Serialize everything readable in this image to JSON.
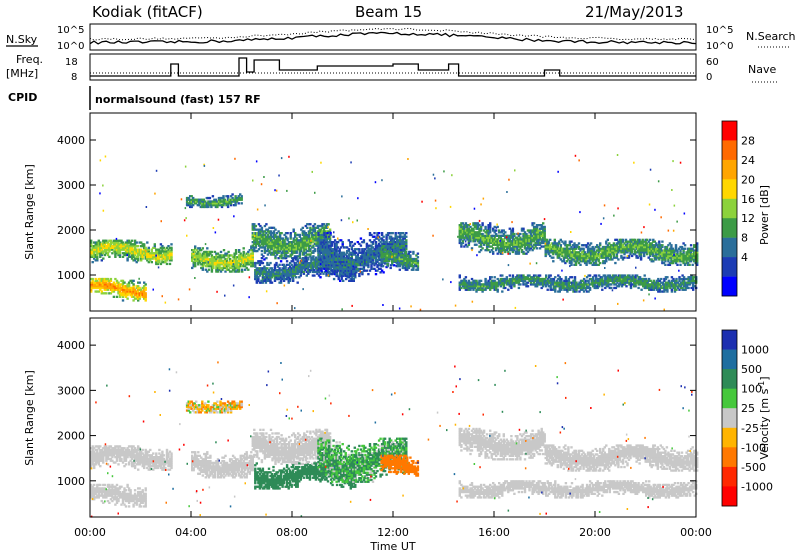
{
  "header": {
    "station": "Kodiak (fitACF)",
    "beam": "Beam 15",
    "date": "21/May/2013"
  },
  "noise_panel": {
    "left_label": "N.Sky",
    "right_label": "N.Search",
    "tick_top": "10^5",
    "tick_bottom": "10^0"
  },
  "freq_panel": {
    "left_label_line1": "Freq.",
    "left_label_line2": "[MHz]",
    "right_label": "Nave",
    "left_ticks": [
      "18",
      "8"
    ],
    "right_ticks": [
      "60",
      "0"
    ]
  },
  "cpid": {
    "label": "CPID",
    "text": "normalsound (fast) 157 RF"
  },
  "power_panel": {
    "ylabel": "Slant Range [km]",
    "yticks": [
      "4000",
      "3000",
      "2000",
      "1000"
    ],
    "colorbar_title": "Power [dB]",
    "colorbar_labels": [
      "28",
      "24",
      "20",
      "16",
      "12",
      "8",
      "4"
    ],
    "colors": [
      "#ff0000",
      "#ff6a00",
      "#ffa500",
      "#ffd700",
      "#8cd23c",
      "#3c9b46",
      "#2a6e9a",
      "#1c3cb4",
      "#0000ff"
    ]
  },
  "velocity_panel": {
    "ylabel": "Slant Range [km]",
    "yticks": [
      "4000",
      "3000",
      "2000",
      "1000"
    ],
    "colorbar_title": "Velocity [m s",
    "colorbar_exp": "-1",
    "colorbar_title_end": "]",
    "colorbar_labels": [
      "1000",
      "500",
      "100",
      "25",
      "-25",
      "-100",
      "-500",
      "-1000"
    ],
    "colors": [
      "#1c2fb0",
      "#1e6ea0",
      "#2e8b57",
      "#46c83c",
      "#c8c8c8",
      "#ffb400",
      "#ff7800",
      "#ff2800",
      "#ff0000"
    ]
  },
  "xaxis": {
    "label": "Time UT",
    "ticks": [
      "00:00",
      "04:00",
      "08:00",
      "12:00",
      "16:00",
      "20:00",
      "00:00"
    ]
  },
  "chart_data": {
    "type": "heatmap",
    "title": "Kodiak (fitACF)",
    "x_range_hours": [
      0,
      24
    ],
    "y_range_km": [
      200,
      4600
    ],
    "power_range_db": [
      0,
      30
    ],
    "velocity_range_ms": [
      -1000,
      1000
    ],
    "bands": [
      {
        "t0": 0.0,
        "t1": 3.2,
        "r_center": 1500,
        "r_width": 280,
        "power": 18,
        "velocity": 0
      },
      {
        "t0": 0.0,
        "t1": 2.2,
        "r_center": 650,
        "r_width": 250,
        "power": 24,
        "velocity": 0
      },
      {
        "t0": 4.0,
        "t1": 6.4,
        "r_center": 1350,
        "r_width": 300,
        "power": 17,
        "velocity": 0
      },
      {
        "t0": 3.8,
        "t1": 6.0,
        "r_center": 2650,
        "r_width": 150,
        "power": 12,
        "velocity": -40
      },
      {
        "t0": 6.4,
        "t1": 9.5,
        "r_center": 1750,
        "r_width": 400,
        "power": 13,
        "velocity": 0
      },
      {
        "t0": 6.5,
        "t1": 10.5,
        "r_center": 1100,
        "r_width": 300,
        "power": 9,
        "velocity": 300
      },
      {
        "t0": 9.0,
        "t1": 12.5,
        "r_center": 1450,
        "r_width": 500,
        "power": 8,
        "velocity": 100
      },
      {
        "t0": 11.5,
        "t1": 13.0,
        "r_center": 1300,
        "r_width": 250,
        "power": 12,
        "velocity": -300
      },
      {
        "t0": 14.6,
        "t1": 18.0,
        "r_center": 1800,
        "r_width": 350,
        "power": 13,
        "velocity": 0
      },
      {
        "t0": 18.0,
        "t1": 24.0,
        "r_center": 1500,
        "r_width": 300,
        "power": 13,
        "velocity": 0
      },
      {
        "t0": 14.6,
        "t1": 24.0,
        "r_center": 800,
        "r_width": 200,
        "power": 11,
        "velocity": 0
      }
    ]
  }
}
